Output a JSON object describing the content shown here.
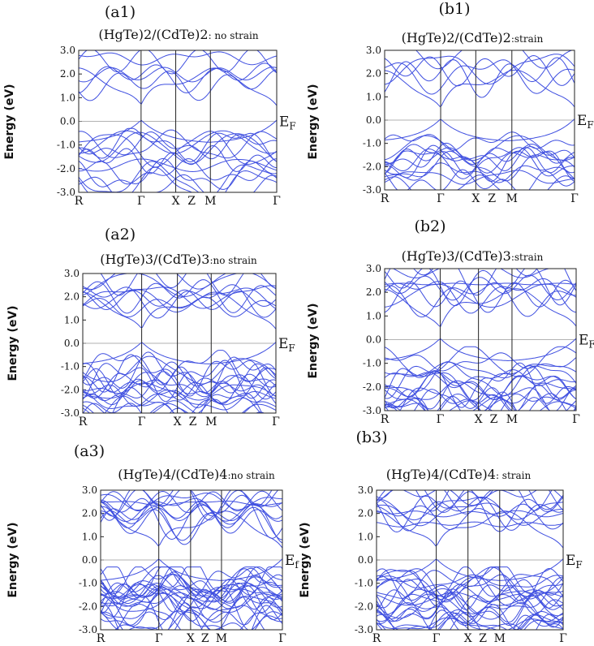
{
  "chart_data": [
    {
      "type": "line",
      "panel_label": "(a1)",
      "title_main": "(HgTe)2/(CdTe)2",
      "title_tail": ": no strain",
      "ylabel": "Energy (eV)",
      "fermi_label": "E",
      "fermi_sub": "F",
      "ylim": [
        -3.0,
        3.0
      ],
      "yticks": [
        "3.0",
        "2.0",
        "1.0",
        "0.0",
        "-1.0",
        "-2.0",
        "-3.0"
      ],
      "kpoints": [
        {
          "label": "R",
          "pos": 0.0
        },
        {
          "label": "Γ",
          "pos": 0.315
        },
        {
          "label": "X",
          "pos": 0.49
        },
        {
          "label": "Z",
          "pos": 0.57
        },
        {
          "label": "M",
          "pos": 0.665
        },
        {
          "label": "Γ",
          "pos": 1.0
        }
      ],
      "band_gap_gamma_eV": 0.5,
      "n_valence": 14,
      "n_conduction": 6,
      "grid": false
    },
    {
      "type": "line",
      "panel_label": "(b1)",
      "title_main": "(HgTe)2/(CdTe)2",
      "title_tail": ":strain",
      "ylabel": "Energy (eV)",
      "fermi_label": "E",
      "fermi_sub": "F",
      "ylim": [
        -3.0,
        3.0
      ],
      "yticks": [
        "3.0",
        "2.0",
        "1.0",
        "0.0",
        "-1.0",
        "-2.0",
        "-3.0"
      ],
      "kpoints": [
        {
          "label": "R",
          "pos": 0.0
        },
        {
          "label": "Γ",
          "pos": 0.295
        },
        {
          "label": "X",
          "pos": 0.48
        },
        {
          "label": "Z",
          "pos": 0.565
        },
        {
          "label": "M",
          "pos": 0.67
        },
        {
          "label": "Γ",
          "pos": 1.0
        }
      ],
      "band_gap_gamma_eV": 0.4,
      "n_valence": 14,
      "n_conduction": 6,
      "grid": false
    },
    {
      "type": "line",
      "panel_label": "(a2)",
      "title_main": "(HgTe)3/(CdTe)3",
      "title_tail": ":no strain",
      "ylabel": "Energy (eV)",
      "fermi_label": "E",
      "fermi_sub": "F",
      "ylim": [
        -3.0,
        3.0
      ],
      "yticks": [
        "3.0",
        "2.0",
        "1.0",
        "0.0",
        "-1.0",
        "-2.0",
        "-3.0"
      ],
      "kpoints": [
        {
          "label": "R",
          "pos": 0.0
        },
        {
          "label": "Γ",
          "pos": 0.305
        },
        {
          "label": "X",
          "pos": 0.49
        },
        {
          "label": "Z",
          "pos": 0.57
        },
        {
          "label": "M",
          "pos": 0.665
        },
        {
          "label": "Γ",
          "pos": 1.0
        }
      ],
      "band_gap_gamma_eV": 0.45,
      "n_valence": 20,
      "n_conduction": 10,
      "grid": false
    },
    {
      "type": "line",
      "panel_label": "(b2)",
      "title_main": "(HgTe)3/(CdTe)3",
      "title_tail": ":strain",
      "ylabel": "Energy (eV)",
      "fermi_label": "E",
      "fermi_sub": "F",
      "ylim": [
        -3.0,
        3.0
      ],
      "yticks": [
        "3.0",
        "2.0",
        "1.0",
        "0.0",
        "-1.0",
        "-2.0",
        "-3.0"
      ],
      "kpoints": [
        {
          "label": "R",
          "pos": 0.0
        },
        {
          "label": "Γ",
          "pos": 0.29
        },
        {
          "label": "X",
          "pos": 0.49
        },
        {
          "label": "Z",
          "pos": 0.57
        },
        {
          "label": "M",
          "pos": 0.665
        },
        {
          "label": "Γ",
          "pos": 1.0
        }
      ],
      "band_gap_gamma_eV": 0.4,
      "n_valence": 20,
      "n_conduction": 10,
      "grid": false
    },
    {
      "type": "line",
      "panel_label": "(a3)",
      "title_main": "(HgTe)4/(CdTe)4",
      "title_tail": ":no strain",
      "ylabel": "Energy (eV)",
      "fermi_label": "E",
      "fermi_sub": "f",
      "ylim": [
        -3.0,
        3.0
      ],
      "yticks": [
        "3.0",
        "2.0",
        "1.0",
        "0.0",
        "-1.0",
        "-2.0",
        "-3.0"
      ],
      "kpoints": [
        {
          "label": "R",
          "pos": 0.0
        },
        {
          "label": "Γ",
          "pos": 0.32
        },
        {
          "label": "X",
          "pos": 0.495
        },
        {
          "label": "Z",
          "pos": 0.575
        },
        {
          "label": "M",
          "pos": 0.665
        },
        {
          "label": "Γ",
          "pos": 1.0
        }
      ],
      "band_gap_gamma_eV": 0.35,
      "n_valence": 26,
      "n_conduction": 12,
      "grid": false
    },
    {
      "type": "line",
      "panel_label": "(b3)",
      "title_main": "(HgTe)4/(CdTe)4",
      "title_tail": ": strain",
      "ylabel": "Energy (eV)",
      "fermi_label": "E",
      "fermi_sub": "F",
      "ylim": [
        -3.0,
        3.0
      ],
      "yticks": [
        "3.0",
        "2.0",
        "1.0",
        "0.0",
        "-1.0",
        "-2.0",
        "-3.0"
      ],
      "kpoints": [
        {
          "label": "R",
          "pos": 0.0
        },
        {
          "label": "Γ",
          "pos": 0.32
        },
        {
          "label": "X",
          "pos": 0.49
        },
        {
          "label": "Z",
          "pos": 0.57
        },
        {
          "label": "M",
          "pos": 0.66
        },
        {
          "label": "Γ",
          "pos": 1.0
        }
      ],
      "band_gap_gamma_eV": 0.35,
      "n_valence": 26,
      "n_conduction": 12,
      "grid": false
    }
  ],
  "colors": {
    "band": "#3f4fe0",
    "frame": "#222222",
    "fermi_line": "#999999"
  }
}
